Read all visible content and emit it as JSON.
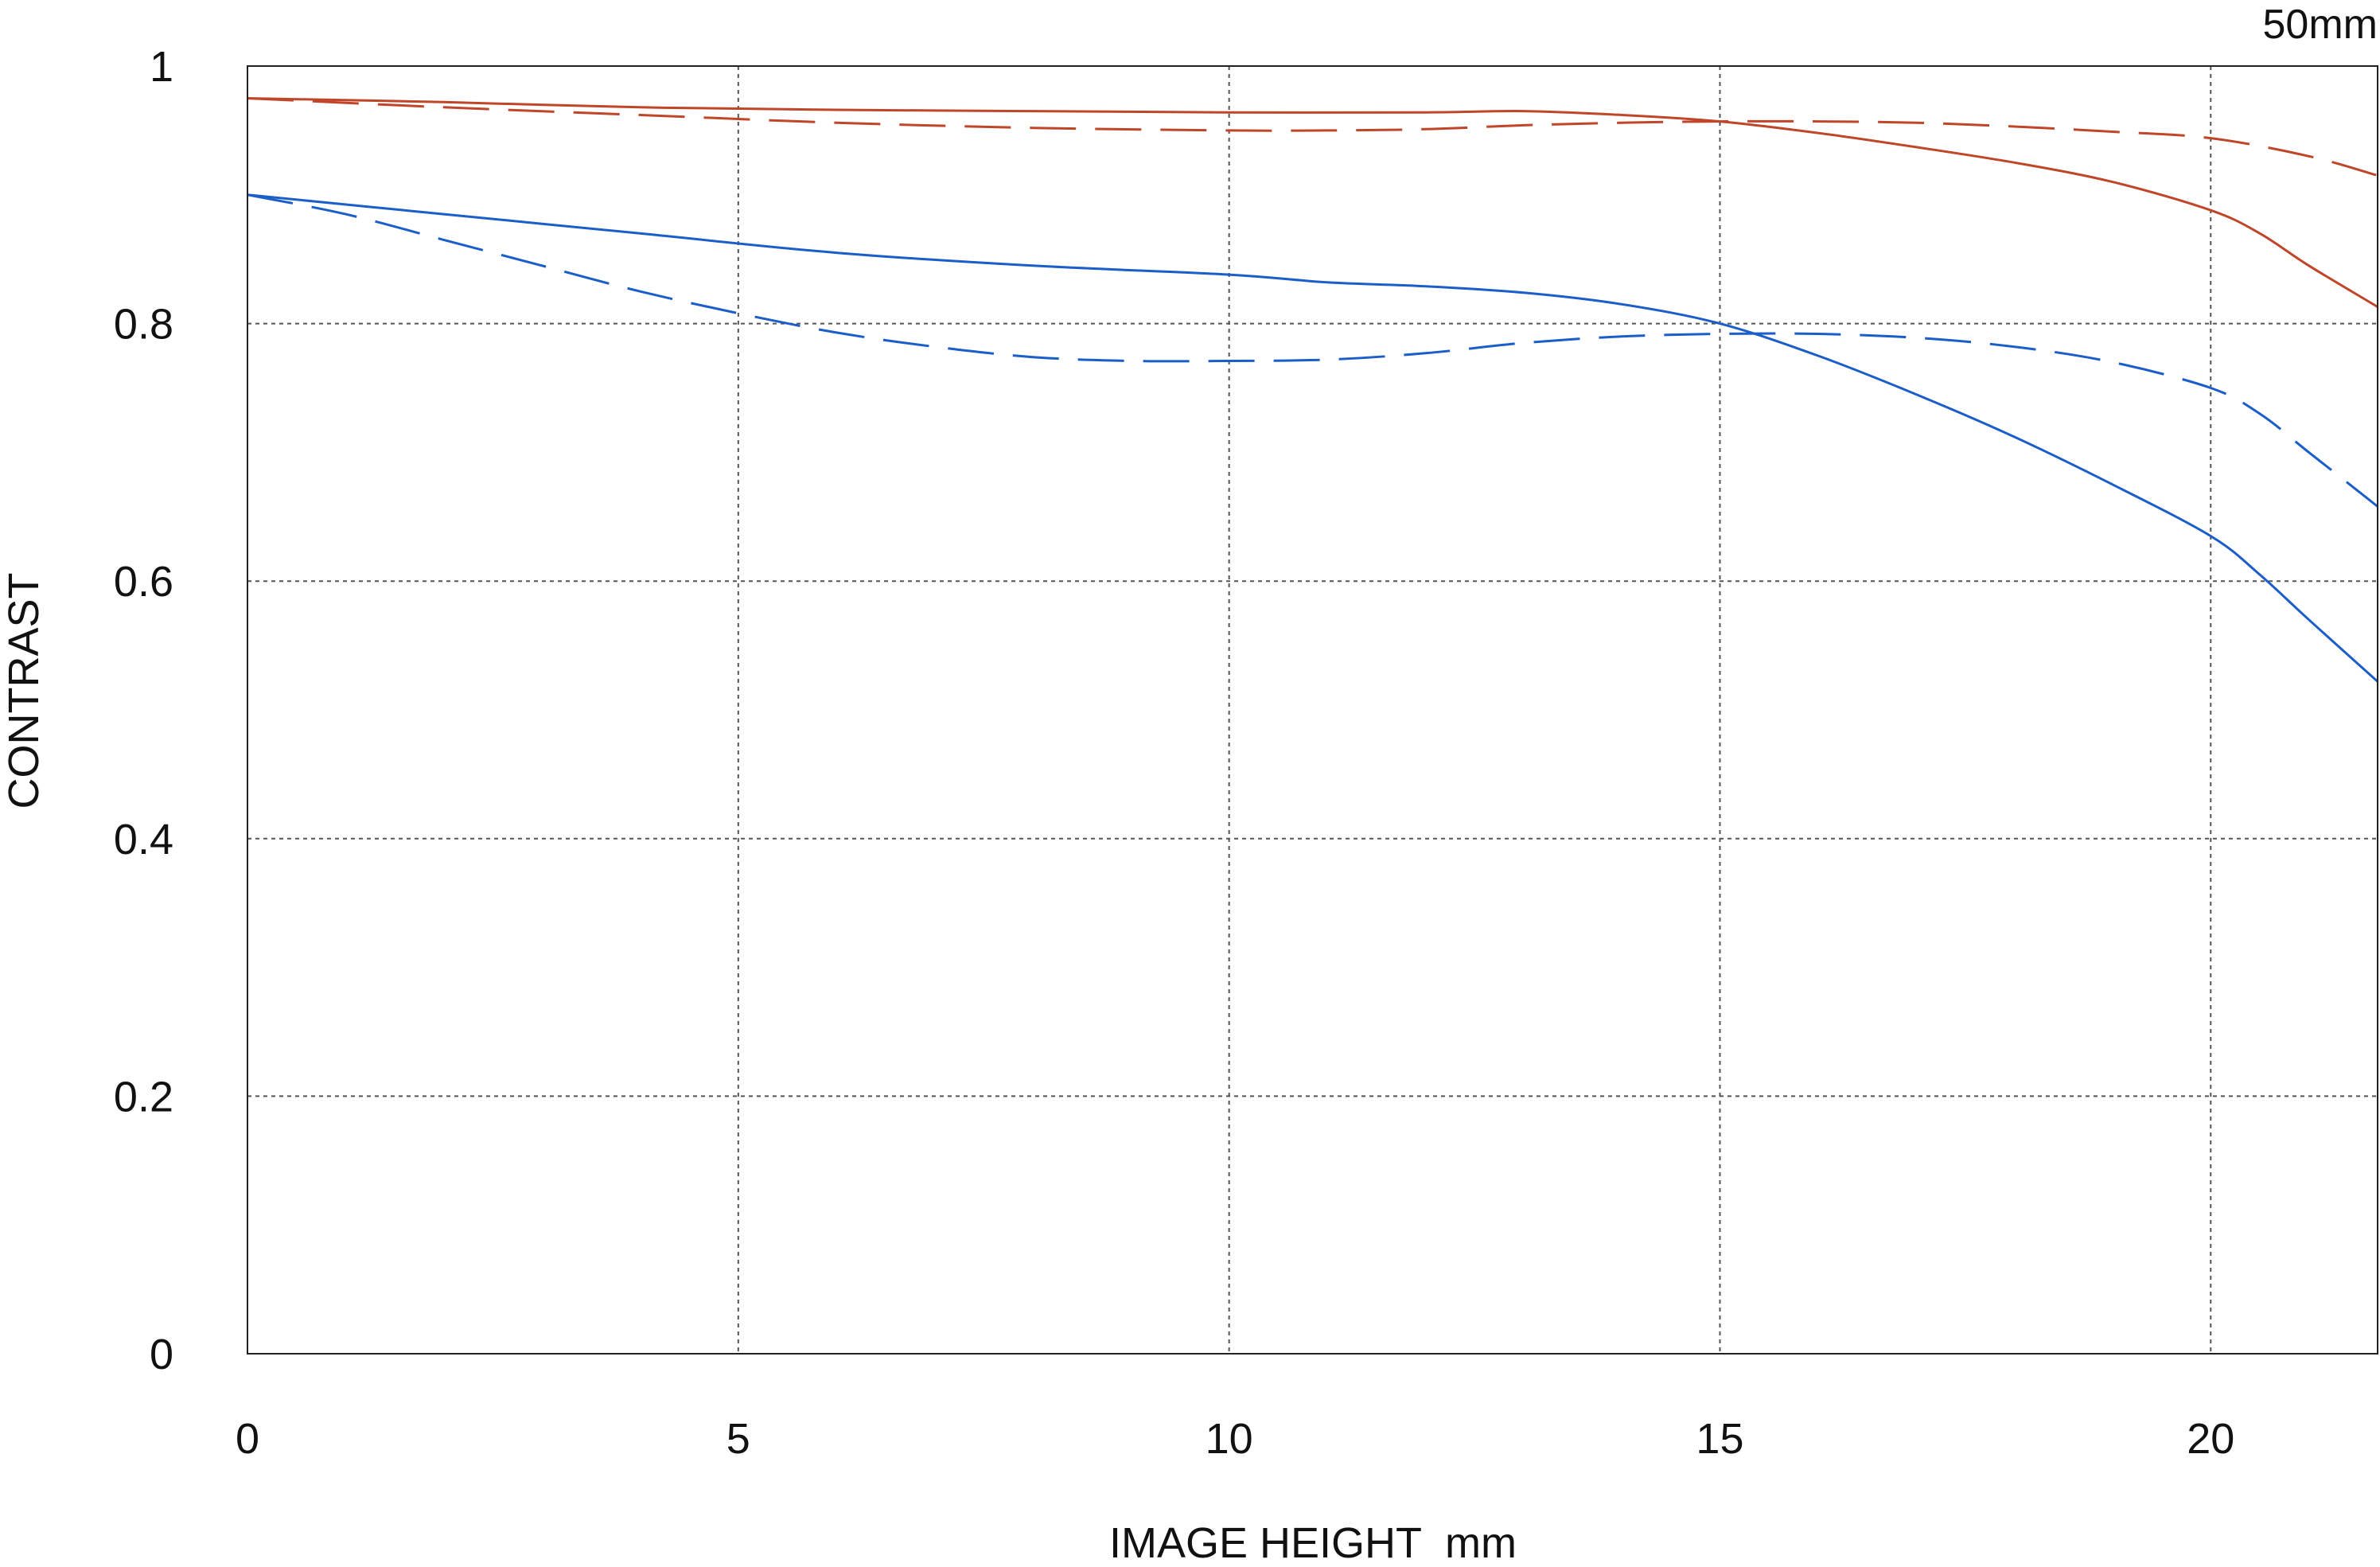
{
  "chart_data": {
    "type": "line",
    "title": "",
    "corner_label": "50mm",
    "xlabel": "IMAGE HEIGHT  mm",
    "ylabel": "CONTRAST",
    "xlim": [
      0,
      21.7
    ],
    "ylim": [
      0,
      1
    ],
    "x_ticks": [
      0,
      5,
      10,
      15,
      20
    ],
    "x_tick_labels": [
      "0",
      "5",
      "10",
      "15",
      "20"
    ],
    "y_ticks": [
      0,
      0.2,
      0.4,
      0.6,
      0.8,
      1
    ],
    "y_tick_labels": [
      "0",
      "0.2",
      "0.4",
      "0.6",
      "0.8",
      "1"
    ],
    "grid": true,
    "legend": "none",
    "series": [
      {
        "color": "#c0462a",
        "dash": "solid",
        "points": [
          [
            0,
            0.975
          ],
          [
            2,
            0.972
          ],
          [
            4,
            0.968
          ],
          [
            6,
            0.966
          ],
          [
            8,
            0.965
          ],
          [
            10,
            0.964
          ],
          [
            12,
            0.964
          ],
          [
            13,
            0.965
          ],
          [
            14,
            0.962
          ],
          [
            15,
            0.957
          ],
          [
            16,
            0.948
          ],
          [
            17,
            0.937
          ],
          [
            18,
            0.925
          ],
          [
            19,
            0.91
          ],
          [
            20,
            0.888
          ],
          [
            20.5,
            0.87
          ],
          [
            21,
            0.845
          ],
          [
            21.7,
            0.813
          ]
        ]
      },
      {
        "color": "#c0462a",
        "dash": "dashed",
        "points": [
          [
            0,
            0.975
          ],
          [
            2,
            0.968
          ],
          [
            4,
            0.962
          ],
          [
            6,
            0.956
          ],
          [
            8,
            0.952
          ],
          [
            10,
            0.95
          ],
          [
            11,
            0.95
          ],
          [
            12,
            0.951
          ],
          [
            13,
            0.954
          ],
          [
            14,
            0.956
          ],
          [
            15,
            0.957
          ],
          [
            16,
            0.957
          ],
          [
            17,
            0.956
          ],
          [
            18,
            0.953
          ],
          [
            19,
            0.949
          ],
          [
            20,
            0.944
          ],
          [
            21,
            0.93
          ],
          [
            21.7,
            0.915
          ]
        ]
      },
      {
        "color": "#1b5ec9",
        "dash": "solid",
        "points": [
          [
            0,
            0.9
          ],
          [
            2,
            0.885
          ],
          [
            4,
            0.87
          ],
          [
            6,
            0.855
          ],
          [
            8,
            0.845
          ],
          [
            10,
            0.838
          ],
          [
            11,
            0.832
          ],
          [
            12,
            0.829
          ],
          [
            13,
            0.824
          ],
          [
            14,
            0.815
          ],
          [
            15,
            0.8
          ],
          [
            16,
            0.775
          ],
          [
            17,
            0.745
          ],
          [
            18,
            0.712
          ],
          [
            19,
            0.675
          ],
          [
            20,
            0.635
          ],
          [
            20.5,
            0.605
          ],
          [
            21,
            0.57
          ],
          [
            21.7,
            0.522
          ]
        ]
      },
      {
        "color": "#1b5ec9",
        "dash": "dashed",
        "points": [
          [
            0,
            0.9
          ],
          [
            1,
            0.885
          ],
          [
            2,
            0.865
          ],
          [
            3,
            0.845
          ],
          [
            4,
            0.825
          ],
          [
            5,
            0.808
          ],
          [
            6,
            0.793
          ],
          [
            7,
            0.782
          ],
          [
            8,
            0.774
          ],
          [
            9,
            0.771
          ],
          [
            10,
            0.771
          ],
          [
            11,
            0.772
          ],
          [
            12,
            0.777
          ],
          [
            13,
            0.785
          ],
          [
            14,
            0.79
          ],
          [
            15,
            0.792
          ],
          [
            16,
            0.792
          ],
          [
            17,
            0.789
          ],
          [
            18,
            0.782
          ],
          [
            19,
            0.77
          ],
          [
            20,
            0.75
          ],
          [
            20.5,
            0.73
          ],
          [
            21,
            0.7
          ],
          [
            21.7,
            0.658
          ]
        ]
      }
    ]
  }
}
